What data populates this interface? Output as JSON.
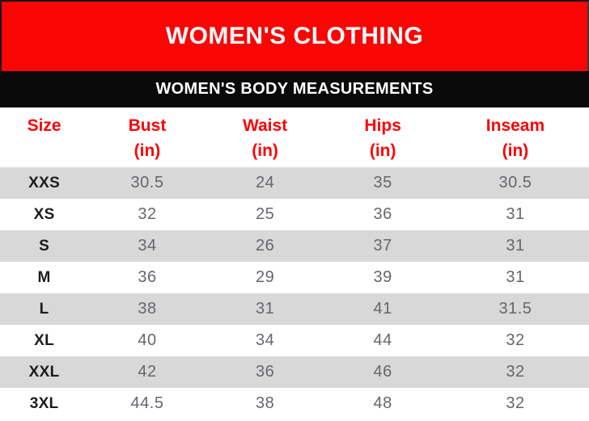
{
  "banner": {
    "title": "WOMEN'S CLOTHING"
  },
  "subbanner": {
    "title": "WOMEN'S BODY MEASUREMENTS"
  },
  "table": {
    "columns": [
      {
        "label": "Size",
        "unit": ""
      },
      {
        "label": "Bust",
        "unit": "(in)"
      },
      {
        "label": "Waist",
        "unit": "(in)"
      },
      {
        "label": "Hips",
        "unit": "(in)"
      },
      {
        "label": "Inseam",
        "unit": "(in)"
      }
    ],
    "rows": [
      {
        "cells": [
          "XXS",
          "30.5",
          "24",
          "35",
          "30.5"
        ]
      },
      {
        "cells": [
          "XS",
          "32",
          "25",
          "36",
          "31"
        ]
      },
      {
        "cells": [
          "S",
          "34",
          "26",
          "37",
          "31"
        ]
      },
      {
        "cells": [
          "M",
          "36",
          "29",
          "39",
          "31"
        ]
      },
      {
        "cells": [
          "L",
          "38",
          "31",
          "41",
          "31.5"
        ]
      },
      {
        "cells": [
          "XL",
          "40",
          "34",
          "44",
          "32"
        ]
      },
      {
        "cells": [
          "XXL",
          "42",
          "36",
          "46",
          "32"
        ]
      },
      {
        "cells": [
          "3XL",
          "44.5",
          "38",
          "48",
          "32"
        ]
      }
    ]
  },
  "colors": {
    "accent_red": "#fb0404",
    "banner_black": "#0a0a0a",
    "header_text_red": "#f90508",
    "row_alt_gray": "#d8d8d8",
    "row_white": "#ffffff",
    "size_text": "#1d1d21",
    "value_text": "#64676c",
    "banner_text": "#ffffff"
  },
  "chart_data": {
    "type": "table",
    "title": "WOMEN'S CLOTHING",
    "subtitle": "WOMEN'S BODY MEASUREMENTS",
    "columns": [
      "Size",
      "Bust (in)",
      "Waist (in)",
      "Hips (in)",
      "Inseam (in)"
    ],
    "rows": [
      [
        "XXS",
        30.5,
        24,
        35,
        30.5
      ],
      [
        "XS",
        32,
        25,
        36,
        31
      ],
      [
        "S",
        34,
        26,
        37,
        31
      ],
      [
        "M",
        36,
        29,
        39,
        31
      ],
      [
        "L",
        38,
        31,
        41,
        31.5
      ],
      [
        "XL",
        40,
        34,
        44,
        32
      ],
      [
        "XXL",
        42,
        36,
        46,
        32
      ],
      [
        "3XL",
        44.5,
        38,
        48,
        32
      ]
    ],
    "layout": {
      "alternating_rows": true,
      "first_data_row_shaded": true,
      "legend_position": "none",
      "grid": false
    }
  }
}
